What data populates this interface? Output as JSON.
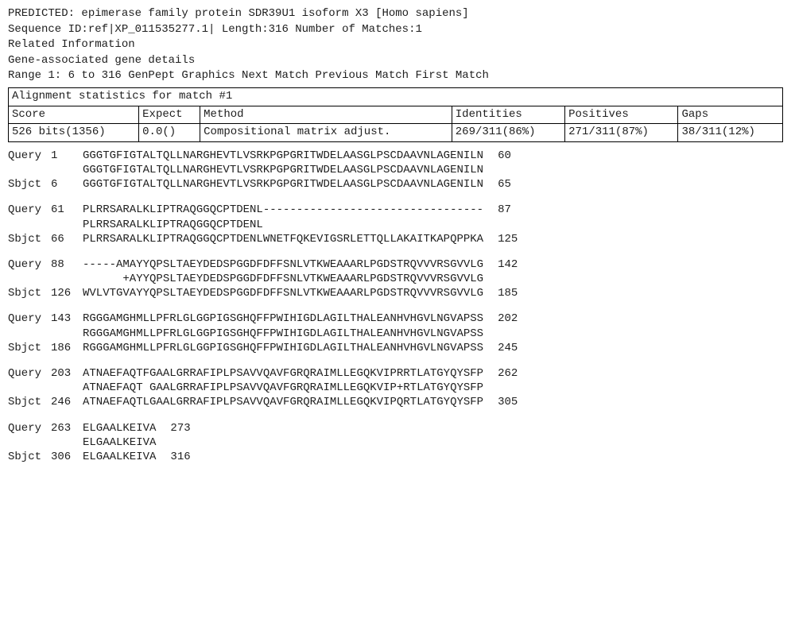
{
  "header": {
    "predicted_line": "PREDICTED: epimerase family protein SDR39U1 isoform X3 [Homo sapiens]",
    "seqid_line": "Sequence ID:ref|XP_011535277.1|  Length:316    Number of Matches:1",
    "related_info": "Related Information",
    "gene_details": "Gene-associated gene details",
    "range_line": "Range 1: 6 to 316 GenPept Graphics Next Match Previous Match First Match"
  },
  "stats": {
    "caption": "Alignment statistics for match #1",
    "headers": {
      "score": "Score",
      "expect": "Expect",
      "method": "Method",
      "identities": "Identities",
      "positives": "Positives",
      "gaps": "Gaps"
    },
    "values": {
      "score": "526 bits(1356)",
      "expect": "0.0()",
      "method": "Compositional matrix adjust.",
      "identities": "269/311(86%)",
      "positives": "271/311(87%)",
      "gaps": "38/311(12%)"
    }
  },
  "alignments": [
    {
      "query_label": "Query",
      "query_start": "1",
      "query_seq": "GGGTGFIGTALTQLLNARGHEVTLVSRKPGPGRITWDELAASGLPSCDAAVNLAGENILN",
      "query_end": "60",
      "mid_seq": "GGGTGFIGTALTQLLNARGHEVTLVSRKPGPGRITWDELAASGLPSCDAAVNLAGENILN",
      "sbjct_label": "Sbjct",
      "sbjct_start": "6",
      "sbjct_seq": "GGGTGFIGTALTQLLNARGHEVTLVSRKPGPGRITWDELAASGLPSCDAAVNLAGENILN",
      "sbjct_end": "65"
    },
    {
      "query_label": "Query",
      "query_start": "61",
      "query_seq": "PLRRSARALKLIPTRAQGGQCPTDENL---------------------------------",
      "query_end": "87",
      "mid_seq": "PLRRSARALKLIPTRAQGGQCPTDENL",
      "sbjct_label": "Sbjct",
      "sbjct_start": "66",
      "sbjct_seq": "PLRRSARALKLIPTRAQGGQCPTDENLWNETFQKEVIGSRLETTQLLAKAITKAPQPPKA",
      "sbjct_end": "125"
    },
    {
      "query_label": "Query",
      "query_start": "88",
      "query_seq": "-----AMAYYQPSLTAEYDEDSPGGDFDFFSNLVTKWEAAARLPGDSTRQVVVRSGVVLG",
      "query_end": "142",
      "mid_seq": "      +AYYQPSLTAEYDEDSPGGDFDFFSNLVTKWEAAARLPGDSTRQVVVRSGVVLG",
      "sbjct_label": "Sbjct",
      "sbjct_start": "126",
      "sbjct_seq": "WVLVTGVAYYQPSLTAEYDEDSPGGDFDFFSNLVTKWEAAARLPGDSTRQVVVRSGVVLG",
      "sbjct_end": "185"
    },
    {
      "query_label": "Query",
      "query_start": "143",
      "query_seq": "RGGGAMGHMLLPFRLGLGGPIGSGHQFFPWIHIGDLAGILTHALEANHVHGVLNGVAPSS",
      "query_end": "202",
      "mid_seq": "RGGGAMGHMLLPFRLGLGGPIGSGHQFFPWIHIGDLAGILTHALEANHVHGVLNGVAPSS",
      "sbjct_label": "Sbjct",
      "sbjct_start": "186",
      "sbjct_seq": "RGGGAMGHMLLPFRLGLGGPIGSGHQFFPWIHIGDLAGILTHALEANHVHGVLNGVAPSS",
      "sbjct_end": "245"
    },
    {
      "query_label": "Query",
      "query_start": "203",
      "query_seq": "ATNAEFAQTFGAALGRRAFIPLPSAVVQAVFGRQRAIMLLEGQKVIPRRTLATGYQYSFP",
      "query_end": "262",
      "mid_seq": "ATNAEFAQT GAALGRRAFIPLPSAVVQAVFGRQRAIMLLEGQKVIP+RTLATGYQYSFP",
      "sbjct_label": "Sbjct",
      "sbjct_start": "246",
      "sbjct_seq": "ATNAEFAQTLGAALGRRAFIPLPSAVVQAVFGRQRAIMLLEGQKVIPQRTLATGYQYSFP",
      "sbjct_end": "305"
    },
    {
      "query_label": "Query",
      "query_start": "263",
      "query_seq": "ELGAALKEIVA",
      "query_end": "273",
      "mid_seq": "ELGAALKEIVA",
      "sbjct_label": "Sbjct",
      "sbjct_start": "306",
      "sbjct_seq": "ELGAALKEIVA",
      "sbjct_end": "316"
    }
  ]
}
